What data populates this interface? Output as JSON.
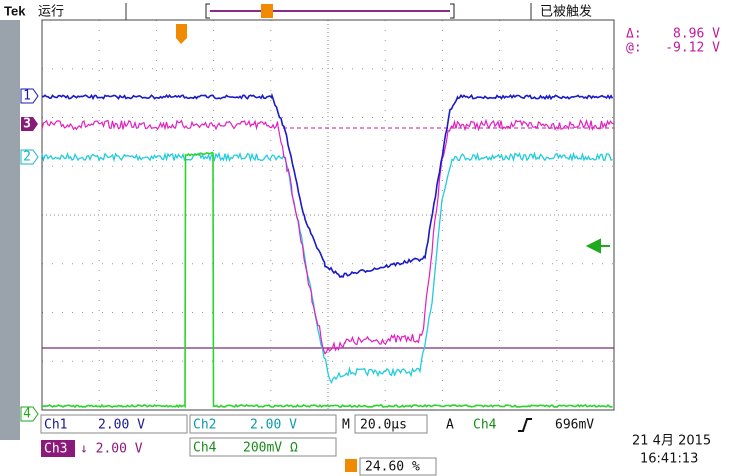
{
  "header": {
    "brand": "Tek",
    "status": "运行",
    "trigger_state": "已被触发"
  },
  "cursor_readout": {
    "delta_label": "Δ:",
    "delta_value": "8.96 V",
    "at_label": "@:",
    "at_value": "-9.12 V"
  },
  "channel_markers": [
    "1",
    "3",
    "2",
    "4"
  ],
  "settings": {
    "ch1": {
      "label": "Ch1",
      "scale": "2.00 V"
    },
    "ch2": {
      "label": "Ch2",
      "scale": "2.00 V"
    },
    "ch3": {
      "label": "Ch3",
      "scale": "↓ 2.00 V"
    },
    "ch4": {
      "label": "Ch4",
      "scale": "200mV Ω"
    },
    "timebase": {
      "label": "M",
      "value": "20.0µs"
    },
    "trigger": {
      "label": "A",
      "source": "Ch4",
      "level": "696mV"
    },
    "trigger_position": "24.60 %"
  },
  "timestamp": {
    "date": "21 4月  2015",
    "time": "16:41:13"
  }
}
